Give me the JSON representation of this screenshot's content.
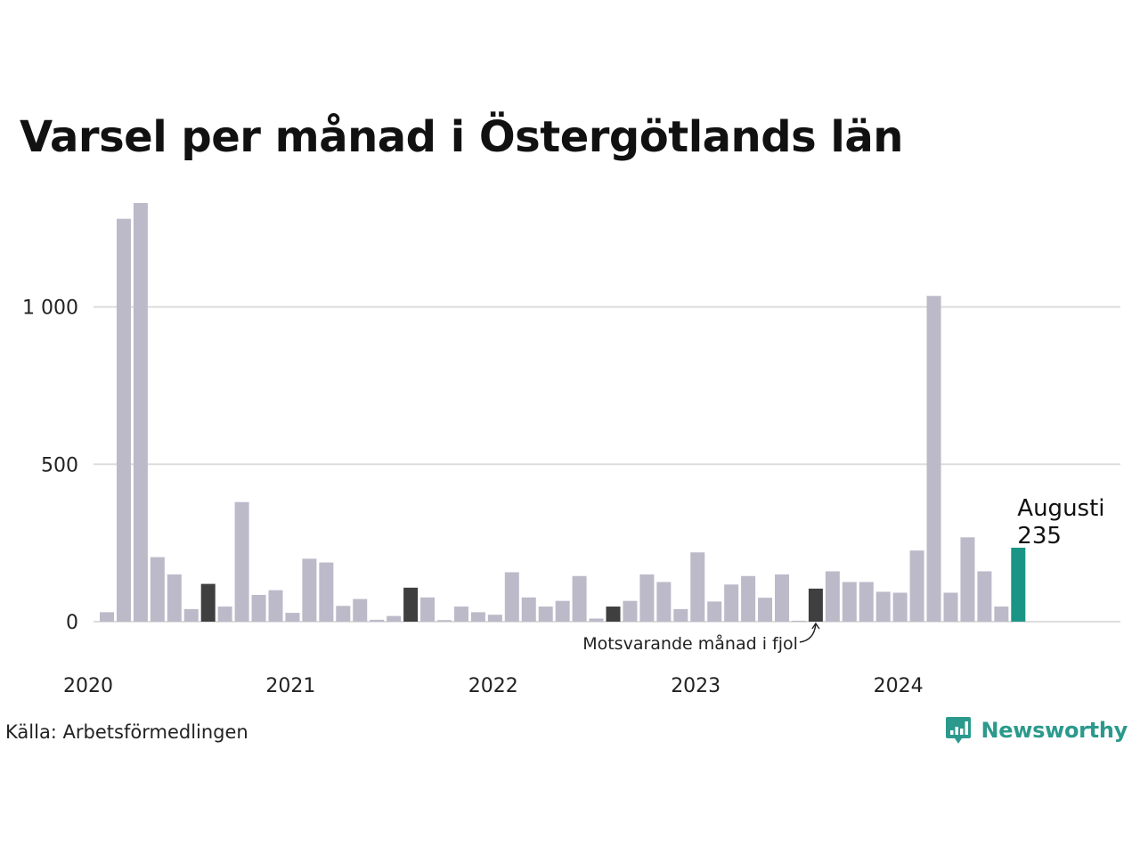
{
  "chart_data": {
    "type": "bar",
    "title": "Varsel per månad i Östergötlands län",
    "xlabel": "",
    "ylabel": "",
    "ylim": [
      0,
      1330
    ],
    "yticks": [
      {
        "value": 0,
        "label": "0"
      },
      {
        "value": 500,
        "label": "500"
      },
      {
        "value": 1000,
        "label": "1 000"
      }
    ],
    "xticks": [
      {
        "index": 0,
        "label": "2020"
      },
      {
        "index": 12,
        "label": "2021"
      },
      {
        "index": 24,
        "label": "2022"
      },
      {
        "index": 36,
        "label": "2023"
      },
      {
        "index": 48,
        "label": "2024"
      }
    ],
    "grid": true,
    "series": [
      {
        "values": [
          30,
          1280,
          1330,
          205,
          150,
          40,
          120,
          48,
          380,
          85,
          100,
          28,
          200,
          188,
          50,
          72,
          6,
          18,
          108,
          77,
          5,
          48,
          30,
          22,
          157,
          77,
          48,
          66,
          145,
          10,
          48,
          66,
          150,
          126,
          40,
          220,
          64,
          118,
          145,
          76,
          150,
          3,
          105,
          160,
          126,
          126,
          95,
          92,
          226,
          1035,
          92,
          268,
          160,
          48,
          235
        ]
      }
    ],
    "highlight_indices": [
      6,
      18,
      30,
      42
    ],
    "current_index": 54,
    "colors": {
      "default": "#bcbac9",
      "same_month_previous_years": "#3f3f3f",
      "current": "#1a9585"
    },
    "annotations": {
      "current_month": "Augusti",
      "current_value": "235",
      "previous_year_label": "Motsvarande månad i fjol"
    }
  },
  "footer": {
    "source": "Källa: Arbetsförmedlingen",
    "brand": "Newsworthy",
    "brand_icon": "bar-chart-speech-bubble-icon",
    "brand_color": "#2b9a8c"
  }
}
